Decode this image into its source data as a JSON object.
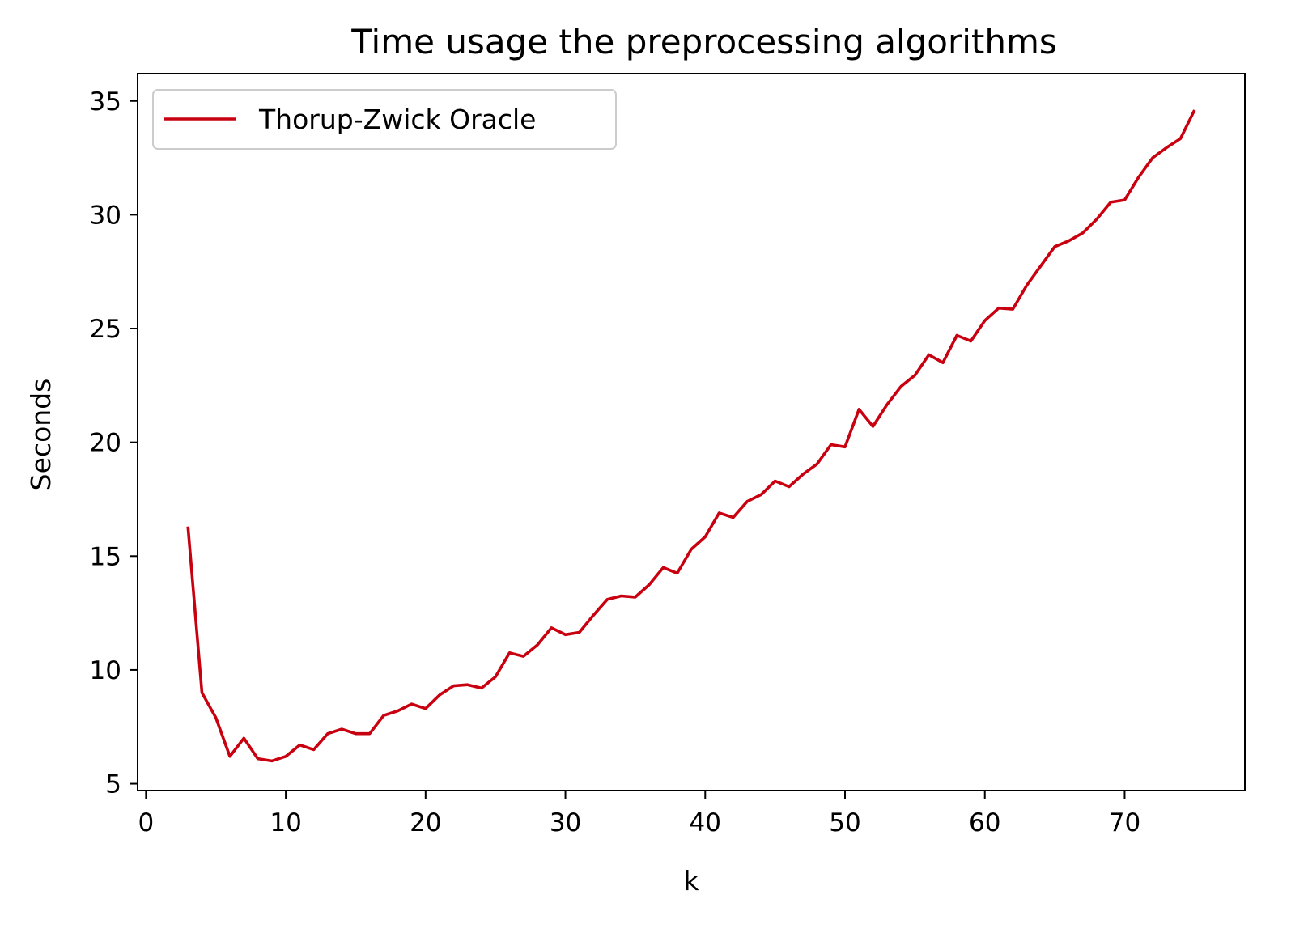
{
  "chart_data": {
    "type": "line",
    "title": "Time usage the preprocessing algorithms",
    "xlabel": "k",
    "ylabel": "Seconds",
    "xlim": [
      -0.6,
      78.6
    ],
    "ylim": [
      4.7,
      36.2
    ],
    "xticks": [
      0,
      10,
      20,
      30,
      40,
      50,
      60,
      70
    ],
    "yticks": [
      5,
      10,
      15,
      20,
      25,
      30,
      35
    ],
    "grid": false,
    "legend_position": "top-left",
    "series": [
      {
        "name": "Thorup-Zwick Oracle",
        "color": "#c8000f",
        "x": [
          3,
          4,
          5,
          6,
          7,
          8,
          9,
          10,
          11,
          12,
          13,
          14,
          15,
          16,
          17,
          18,
          19,
          20,
          21,
          22,
          23,
          24,
          25,
          26,
          27,
          28,
          29,
          30,
          31,
          32,
          33,
          34,
          35,
          36,
          37,
          38,
          39,
          40,
          41,
          42,
          43,
          44,
          45,
          46,
          47,
          48,
          49,
          50,
          51,
          52,
          53,
          54,
          55,
          56,
          57,
          58,
          59,
          60,
          61,
          62,
          63,
          64,
          65,
          66,
          67,
          68,
          69,
          70,
          71,
          72,
          73,
          74,
          75
        ],
        "y": [
          16.3,
          9.0,
          7.9,
          6.2,
          7.0,
          6.1,
          6.0,
          6.2,
          6.7,
          6.5,
          7.2,
          7.4,
          7.2,
          7.2,
          8.0,
          8.2,
          8.5,
          8.3,
          8.9,
          9.3,
          9.35,
          9.2,
          9.7,
          10.75,
          10.6,
          11.1,
          11.85,
          11.55,
          11.65,
          12.4,
          13.1,
          13.25,
          13.2,
          13.75,
          14.5,
          14.25,
          15.3,
          15.85,
          16.9,
          16.7,
          17.4,
          17.7,
          18.3,
          18.05,
          18.6,
          19.05,
          19.9,
          19.8,
          21.45,
          20.7,
          21.65,
          22.45,
          22.95,
          23.85,
          23.5,
          24.7,
          24.45,
          25.35,
          25.9,
          25.85,
          26.9,
          27.75,
          28.6,
          28.85,
          29.2,
          29.8,
          30.55,
          30.65,
          31.65,
          32.5,
          32.95,
          33.35,
          34.6
        ]
      }
    ]
  }
}
